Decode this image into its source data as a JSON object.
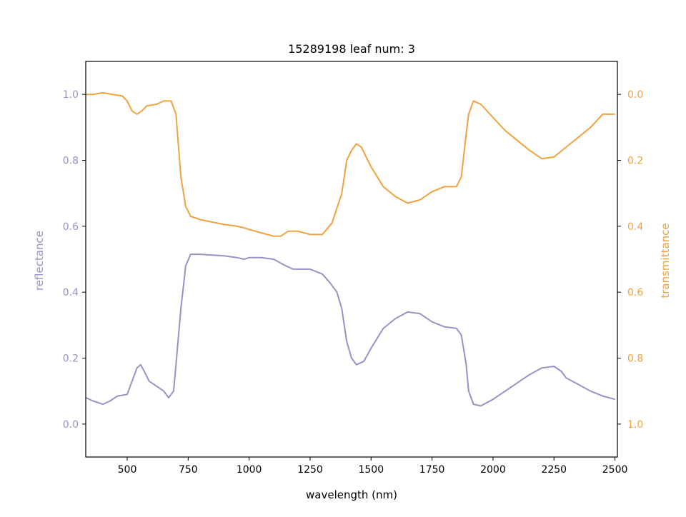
{
  "chart_data": {
    "type": "line",
    "title": "15289198 leaf num: 3",
    "xlabel": "wavelength (nm)",
    "ylabel_left": "reflectance",
    "ylabel_right": "transmittance",
    "xlim": [
      330,
      2510
    ],
    "ylim_left": [
      -0.1,
      1.1
    ],
    "ylim_right": [
      1.1,
      -0.1
    ],
    "right_axis_inverted": true,
    "grid": false,
    "x_ticks": [
      500,
      750,
      1000,
      1250,
      1500,
      1750,
      2000,
      2250,
      2500
    ],
    "y_ticks_left": [
      0.0,
      0.2,
      0.4,
      0.6,
      0.8,
      1.0
    ],
    "y_ticks_right": [
      0.0,
      0.2,
      0.4,
      0.6,
      0.8,
      1.0
    ],
    "colors": {
      "reflectance": "#9891c8",
      "transmittance": "#f0a23e"
    },
    "series": [
      {
        "axis": "left",
        "x": [
          330,
          360,
          400,
          430,
          460,
          500,
          520,
          540,
          555,
          570,
          590,
          620,
          650,
          670,
          690,
          700,
          720,
          740,
          760,
          800,
          900,
          950,
          980,
          1000,
          1050,
          1100,
          1150,
          1180,
          1250,
          1300,
          1330,
          1360,
          1380,
          1400,
          1420,
          1440,
          1470,
          1500,
          1550,
          1600,
          1650,
          1700,
          1750,
          1800,
          1850,
          1870,
          1890,
          1900,
          1920,
          1950,
          2000,
          2050,
          2100,
          2150,
          2200,
          2250,
          2280,
          2300,
          2350,
          2400,
          2450,
          2500
        ],
        "y": [
          0.08,
          0.07,
          0.06,
          0.07,
          0.085,
          0.09,
          0.13,
          0.17,
          0.18,
          0.16,
          0.13,
          0.115,
          0.1,
          0.08,
          0.1,
          0.18,
          0.35,
          0.48,
          0.515,
          0.515,
          0.51,
          0.505,
          0.5,
          0.505,
          0.505,
          0.5,
          0.48,
          0.47,
          0.47,
          0.455,
          0.43,
          0.4,
          0.35,
          0.25,
          0.2,
          0.18,
          0.19,
          0.23,
          0.29,
          0.32,
          0.34,
          0.335,
          0.31,
          0.295,
          0.29,
          0.27,
          0.18,
          0.1,
          0.06,
          0.055,
          0.075,
          0.1,
          0.125,
          0.15,
          0.17,
          0.175,
          0.16,
          0.14,
          0.12,
          0.1,
          0.085,
          0.075
        ]
      },
      {
        "axis": "right",
        "x": [
          330,
          360,
          400,
          440,
          480,
          500,
          520,
          540,
          560,
          580,
          620,
          650,
          680,
          700,
          720,
          740,
          760,
          800,
          900,
          950,
          980,
          1000,
          1050,
          1100,
          1130,
          1160,
          1200,
          1250,
          1300,
          1340,
          1380,
          1400,
          1420,
          1440,
          1460,
          1480,
          1500,
          1550,
          1600,
          1650,
          1700,
          1750,
          1800,
          1850,
          1870,
          1890,
          1900,
          1920,
          1950,
          2000,
          2050,
          2100,
          2150,
          2200,
          2250,
          2300,
          2350,
          2400,
          2450,
          2500
        ],
        "y": [
          0.0,
          0.0,
          -0.005,
          0.0,
          0.005,
          0.02,
          0.05,
          0.06,
          0.05,
          0.035,
          0.03,
          0.02,
          0.02,
          0.06,
          0.25,
          0.34,
          0.37,
          0.38,
          0.395,
          0.4,
          0.405,
          0.41,
          0.42,
          0.43,
          0.43,
          0.415,
          0.415,
          0.425,
          0.425,
          0.39,
          0.3,
          0.2,
          0.17,
          0.15,
          0.16,
          0.19,
          0.22,
          0.28,
          0.31,
          0.33,
          0.32,
          0.295,
          0.28,
          0.28,
          0.25,
          0.12,
          0.06,
          0.02,
          0.03,
          0.07,
          0.11,
          0.14,
          0.17,
          0.195,
          0.19,
          0.16,
          0.13,
          0.1,
          0.06,
          0.06
        ]
      }
    ]
  }
}
